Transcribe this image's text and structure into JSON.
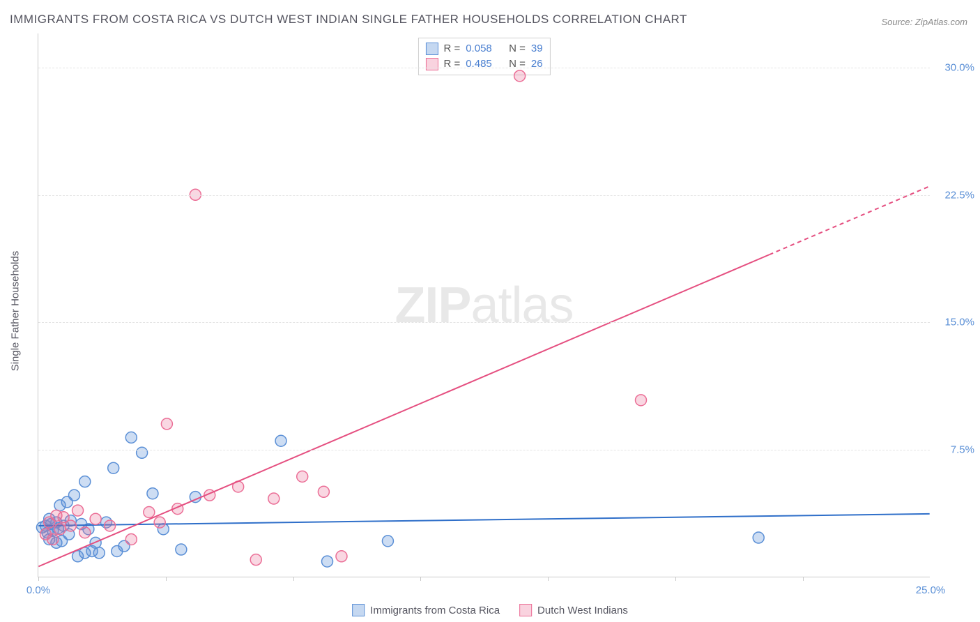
{
  "title": "IMMIGRANTS FROM COSTA RICA VS DUTCH WEST INDIAN SINGLE FATHER HOUSEHOLDS CORRELATION CHART",
  "source": "Source: ZipAtlas.com",
  "watermark_a": "ZIP",
  "watermark_b": "atlas",
  "y_axis_label": "Single Father Households",
  "chart": {
    "type": "scatter",
    "background_color": "#ffffff",
    "grid_color": "#e4e4e4",
    "axis_color": "#c9c9c9",
    "xlim": [
      0,
      25
    ],
    "ylim": [
      0,
      32
    ],
    "y_ticks": [
      {
        "value": 7.5,
        "label": "7.5%"
      },
      {
        "value": 15.0,
        "label": "15.0%"
      },
      {
        "value": 22.5,
        "label": "22.5%"
      },
      {
        "value": 30.0,
        "label": "30.0%"
      }
    ],
    "x_ticks_minor": [
      0,
      3.57,
      7.14,
      10.71,
      14.28,
      17.85,
      21.42
    ],
    "x_labels": [
      {
        "value": 0,
        "label": "0.0%"
      },
      {
        "value": 25,
        "label": "25.0%"
      }
    ],
    "marker_radius": 8,
    "marker_stroke_width": 1.5,
    "line_width": 2,
    "series": [
      {
        "name": "Immigrants from Costa Rica",
        "color_fill": "rgba(90,143,214,0.30)",
        "color_stroke": "#5a8fd6",
        "line_color": "#2f6fc9",
        "R": "0.058",
        "N": "39",
        "trend": {
          "x1": 0,
          "y1": 3.0,
          "x2": 25,
          "y2": 3.7,
          "dash_from_x": null
        },
        "points": [
          [
            0.1,
            2.9
          ],
          [
            0.2,
            3.0
          ],
          [
            0.25,
            2.6
          ],
          [
            0.3,
            3.4
          ],
          [
            0.3,
            2.2
          ],
          [
            0.35,
            3.1
          ],
          [
            0.4,
            2.7
          ],
          [
            0.5,
            3.2
          ],
          [
            0.5,
            2.0
          ],
          [
            0.55,
            2.85
          ],
          [
            0.6,
            4.2
          ],
          [
            0.65,
            2.1
          ],
          [
            0.7,
            3.0
          ],
          [
            0.8,
            4.4
          ],
          [
            0.85,
            2.5
          ],
          [
            0.9,
            3.3
          ],
          [
            1.0,
            4.8
          ],
          [
            1.1,
            1.2
          ],
          [
            1.2,
            3.1
          ],
          [
            1.3,
            5.6
          ],
          [
            1.3,
            1.4
          ],
          [
            1.4,
            2.8
          ],
          [
            1.5,
            1.5
          ],
          [
            1.6,
            2.0
          ],
          [
            1.7,
            1.4
          ],
          [
            1.9,
            3.2
          ],
          [
            2.1,
            6.4
          ],
          [
            2.2,
            1.5
          ],
          [
            2.4,
            1.8
          ],
          [
            2.6,
            8.2
          ],
          [
            2.9,
            7.3
          ],
          [
            3.2,
            4.9
          ],
          [
            3.5,
            2.8
          ],
          [
            4.0,
            1.6
          ],
          [
            4.4,
            4.7
          ],
          [
            6.8,
            8.0
          ],
          [
            8.1,
            0.9
          ],
          [
            9.8,
            2.1
          ],
          [
            20.2,
            2.3
          ]
        ]
      },
      {
        "name": "Dutch West Indians",
        "color_fill": "rgba(235,110,150,0.28)",
        "color_stroke": "#eb6e96",
        "line_color": "#e54f80",
        "R": "0.485",
        "N": "26",
        "trend": {
          "x1": 0,
          "y1": 0.6,
          "x2": 25,
          "y2": 23.0,
          "dash_from_x": 20.5
        },
        "points": [
          [
            0.2,
            2.5
          ],
          [
            0.3,
            3.2
          ],
          [
            0.4,
            2.2
          ],
          [
            0.5,
            3.6
          ],
          [
            0.6,
            2.8
          ],
          [
            0.7,
            3.5
          ],
          [
            0.9,
            3.0
          ],
          [
            1.1,
            3.9
          ],
          [
            1.3,
            2.6
          ],
          [
            1.6,
            3.4
          ],
          [
            2.0,
            3.0
          ],
          [
            2.6,
            2.2
          ],
          [
            3.1,
            3.8
          ],
          [
            3.4,
            3.2
          ],
          [
            3.6,
            9.0
          ],
          [
            3.9,
            4.0
          ],
          [
            4.4,
            22.5
          ],
          [
            4.8,
            4.8
          ],
          [
            5.6,
            5.3
          ],
          [
            6.1,
            1.0
          ],
          [
            6.6,
            4.6
          ],
          [
            7.4,
            5.9
          ],
          [
            8.5,
            1.2
          ],
          [
            13.5,
            29.5
          ],
          [
            16.9,
            10.4
          ],
          [
            8.0,
            5.0
          ]
        ]
      }
    ]
  },
  "legend_bottom": {
    "a": "Immigrants from Costa Rica",
    "b": "Dutch West Indians"
  },
  "legend_top": {
    "r_prefix": "R =",
    "n_prefix": "N ="
  }
}
